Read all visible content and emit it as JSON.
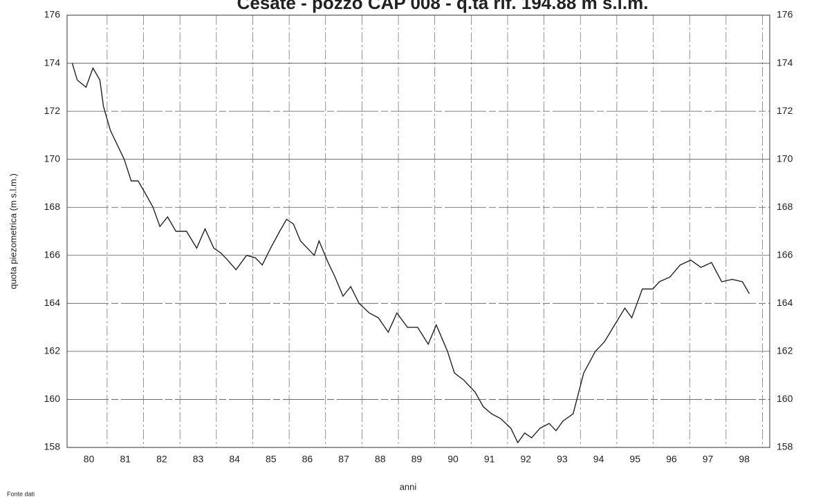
{
  "chart_data": {
    "type": "line",
    "title": "Cesate - pozzo CAP 008 - q.ta rif. 194.88 m s.l.m.",
    "x_label": "anni",
    "y_label": "quota piezometrica (m s.l.m.)",
    "source": "Fonte dati",
    "xlim": [
      79.9,
      99.2
    ],
    "ylim": [
      158,
      176
    ],
    "yticks": [
      158,
      160,
      162,
      164,
      166,
      168,
      170,
      172,
      174,
      176
    ],
    "xticks": [
      {
        "value": 80.5,
        "label": "80"
      },
      {
        "value": 81.5,
        "label": "81"
      },
      {
        "value": 82.5,
        "label": "82"
      },
      {
        "value": 83.5,
        "label": "83"
      },
      {
        "value": 84.5,
        "label": "84"
      },
      {
        "value": 85.5,
        "label": "85"
      },
      {
        "value": 86.5,
        "label": "86"
      },
      {
        "value": 87.5,
        "label": "87"
      },
      {
        "value": 88.5,
        "label": "88"
      },
      {
        "value": 89.5,
        "label": "89"
      },
      {
        "value": 90.5,
        "label": "90"
      },
      {
        "value": 91.5,
        "label": "91"
      },
      {
        "value": 92.5,
        "label": "92"
      },
      {
        "value": 93.5,
        "label": "93"
      },
      {
        "value": 94.5,
        "label": "94"
      },
      {
        "value": 95.5,
        "label": "95"
      },
      {
        "value": 96.5,
        "label": "96"
      },
      {
        "value": 97.5,
        "label": "97"
      },
      {
        "value": 98.5,
        "label": "98"
      }
    ],
    "grid": true,
    "color": "#222222",
    "x": [
      80.04,
      80.18,
      80.42,
      80.61,
      80.8,
      80.9,
      81.09,
      81.28,
      81.47,
      81.66,
      81.85,
      82.04,
      82.26,
      82.45,
      82.66,
      82.89,
      83.18,
      83.46,
      83.69,
      83.93,
      84.12,
      84.31,
      84.54,
      84.83,
      85.07,
      85.26,
      85.49,
      85.74,
      85.93,
      86.12,
      86.31,
      86.5,
      86.69,
      86.82,
      87.07,
      87.26,
      87.48,
      87.69,
      87.92,
      88.2,
      88.45,
      88.72,
      88.96,
      89.25,
      89.53,
      89.82,
      90.04,
      90.35,
      90.54,
      90.8,
      91.11,
      91.33,
      91.56,
      91.81,
      92.09,
      92.28,
      92.47,
      92.66,
      92.89,
      93.14,
      93.33,
      93.52,
      93.8,
      94.09,
      94.41,
      94.66,
      94.94,
      95.22,
      95.41,
      95.7,
      95.99,
      96.17,
      96.46,
      96.74,
      97.03,
      97.31,
      97.6,
      97.88,
      98.17,
      98.45,
      98.64
    ],
    "values": [
      174.0,
      173.3,
      173.0,
      173.8,
      173.3,
      172.2,
      171.2,
      170.6,
      170.0,
      169.1,
      169.1,
      168.6,
      168.0,
      167.2,
      167.6,
      167.0,
      167.0,
      166.3,
      167.1,
      166.3,
      166.1,
      165.8,
      165.4,
      166.0,
      165.9,
      165.6,
      166.3,
      167.0,
      167.5,
      167.3,
      166.6,
      166.3,
      166.0,
      166.6,
      165.7,
      165.1,
      164.3,
      164.7,
      164.0,
      163.6,
      163.4,
      162.8,
      163.6,
      163.0,
      163.0,
      162.3,
      163.1,
      162.0,
      161.1,
      160.8,
      160.3,
      159.7,
      159.4,
      159.2,
      158.8,
      158.2,
      158.6,
      158.4,
      158.8,
      159.0,
      158.7,
      159.1,
      159.4,
      161.1,
      162.0,
      162.4,
      163.1,
      163.8,
      163.4,
      164.6,
      164.6,
      164.9,
      165.1,
      165.6,
      165.8,
      165.5,
      165.7,
      164.9,
      165.0,
      164.9,
      164.4
    ]
  }
}
